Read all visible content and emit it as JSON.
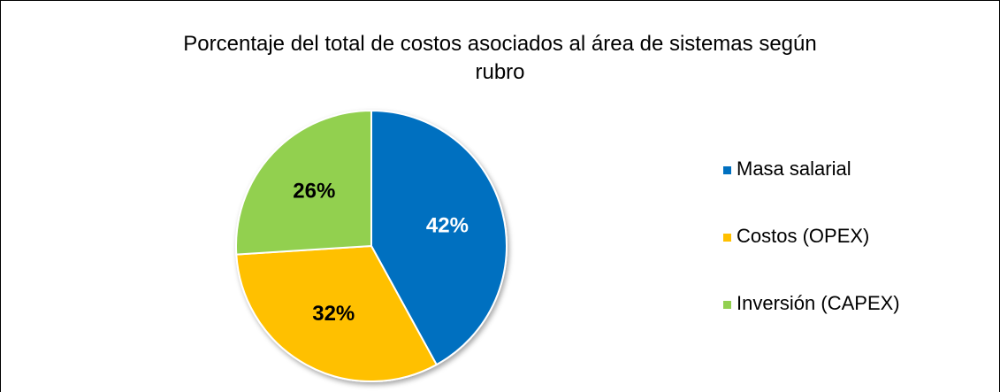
{
  "chart_data": {
    "type": "pie",
    "title": "Porcentaje del total de costos asociados al área de sistemas según rubro",
    "categories": [
      "Masa salarial",
      "Costos (OPEX)",
      "Inversión (CAPEX)"
    ],
    "values": [
      42,
      32,
      26
    ],
    "value_labels": [
      "42%",
      "32%",
      "26%"
    ],
    "colors": [
      "#0070c0",
      "#ffc000",
      "#92d050"
    ],
    "label_colors": [
      "#ffffff",
      "#000000",
      "#000000"
    ],
    "legend": "right"
  }
}
